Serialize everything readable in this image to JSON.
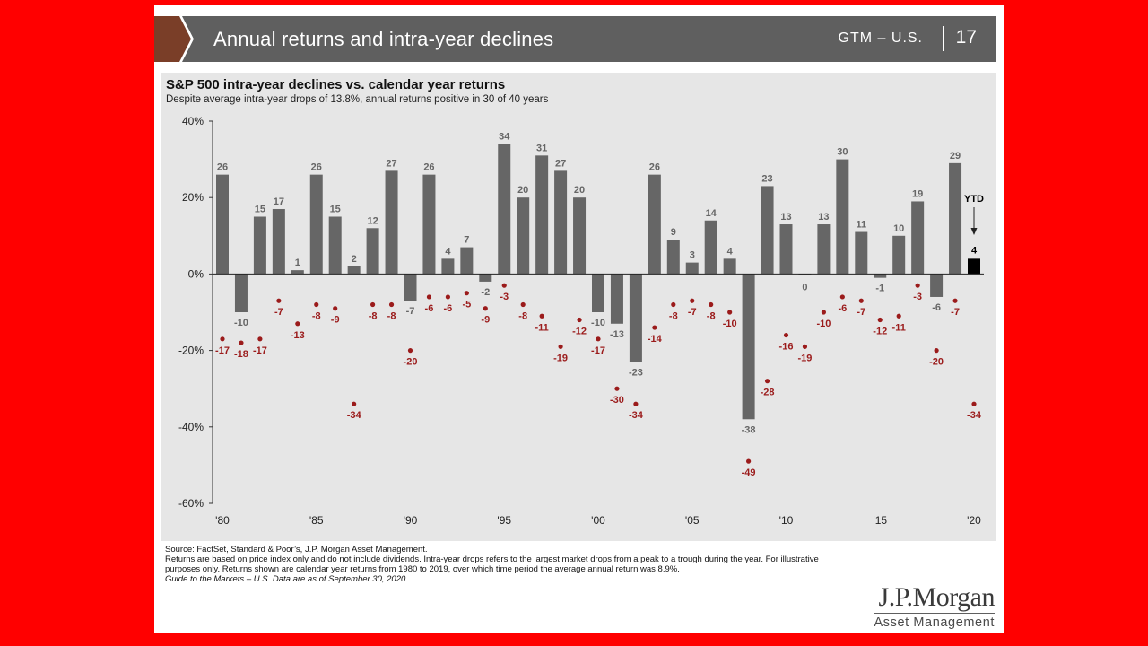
{
  "banner": {
    "title": "Annual returns and intra-year declines",
    "code": "GTM – U.S.",
    "page": "17"
  },
  "colors": {
    "bar": "#666666",
    "ytd_bar": "#000000",
    "decline_dot": "#9b1b1b",
    "banner": "#5f5f5f",
    "panel": "#e6e6e6",
    "background": "#ff0000"
  },
  "chart_data": {
    "type": "bar",
    "title": "S&P 500 intra-year declines vs. calendar year returns",
    "subtitle": "Despite average intra-year drops of 13.8%, annual returns positive in 30 of 40 years",
    "years": [
      1980,
      1981,
      1982,
      1983,
      1984,
      1985,
      1986,
      1987,
      1988,
      1989,
      1990,
      1991,
      1992,
      1993,
      1994,
      1995,
      1996,
      1997,
      1998,
      1999,
      2000,
      2001,
      2002,
      2003,
      2004,
      2005,
      2006,
      2007,
      2008,
      2009,
      2010,
      2011,
      2012,
      2013,
      2014,
      2015,
      2016,
      2017,
      2018,
      2019,
      2020
    ],
    "series": [
      {
        "name": "Calendar year returns",
        "type": "bar",
        "values": [
          26,
          -10,
          15,
          17,
          1,
          26,
          15,
          2,
          12,
          27,
          -7,
          26,
          4,
          7,
          -2,
          34,
          20,
          31,
          27,
          20,
          -10,
          -13,
          -23,
          26,
          9,
          3,
          14,
          4,
          -38,
          23,
          13,
          0,
          13,
          30,
          11,
          -1,
          10,
          19,
          -6,
          29,
          4
        ]
      },
      {
        "name": "Intra-year declines",
        "type": "scatter",
        "values": [
          -17,
          -18,
          -17,
          -7,
          -13,
          -8,
          -9,
          -34,
          -8,
          -8,
          -20,
          -6,
          -6,
          -5,
          -9,
          -3,
          -8,
          -11,
          -19,
          -12,
          -17,
          -30,
          -34,
          -14,
          -8,
          -7,
          -8,
          -10,
          -49,
          -28,
          -16,
          -19,
          -10,
          -6,
          -7,
          -12,
          -11,
          -3,
          -20,
          -7,
          -34
        ]
      }
    ],
    "ytd_label": "YTD",
    "y_ticks": [
      "40%",
      "20%",
      "0%",
      "-20%",
      "-40%",
      "-60%"
    ],
    "x_ticks": [
      {
        "year": 1980,
        "label": "'80"
      },
      {
        "year": 1985,
        "label": "'85"
      },
      {
        "year": 1990,
        "label": "'90"
      },
      {
        "year": 1995,
        "label": "'95"
      },
      {
        "year": 2000,
        "label": "'00"
      },
      {
        "year": 2005,
        "label": "'05"
      },
      {
        "year": 2010,
        "label": "'10"
      },
      {
        "year": 2015,
        "label": "'15"
      },
      {
        "year": 2020,
        "label": "'20"
      }
    ],
    "ylim": [
      -60,
      40
    ]
  },
  "footnotes": {
    "source": "Source: FactSet, Standard & Poor’s, J.P. Morgan Asset Management.",
    "note": "Returns are based on price index only and do not include dividends. Intra-year drops refers to the largest market drops from a peak to a trough during the year. For illustrative purposes only. Returns shown are calendar year returns from 1980 to 2019, over which time period the average annual return was 8.9%.",
    "guide": "Guide to the Markets – U.S. Data are as of September 30, 2020."
  },
  "logo": {
    "name": "J.P.Morgan",
    "sub": "Asset Management"
  }
}
